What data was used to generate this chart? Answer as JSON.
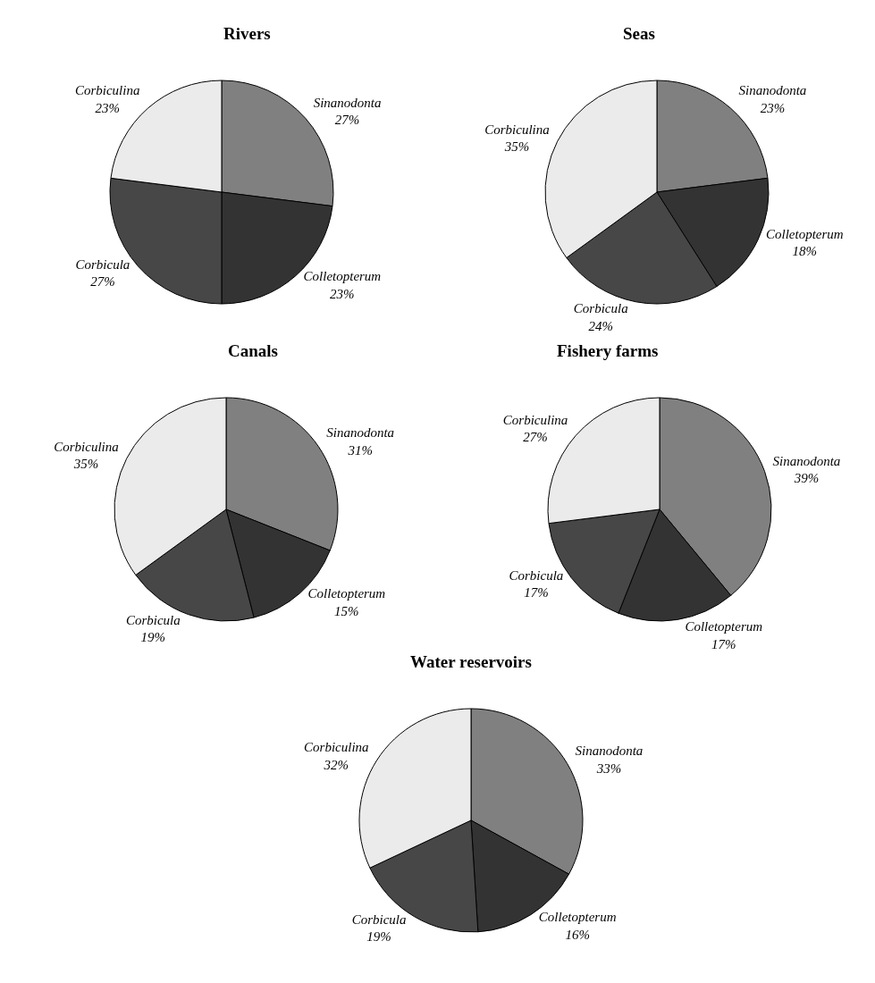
{
  "chart_data": [
    {
      "type": "pie",
      "title": "Rivers",
      "categories": [
        "Sinanodonta",
        "Colletopterum",
        "Corbicula",
        "Corbiculina"
      ],
      "values": [
        27,
        23,
        27,
        23
      ],
      "value_labels": [
        "27%",
        "23%",
        "27%",
        "23%"
      ],
      "colors": [
        "#808080",
        "#333333",
        "#474747",
        "#ebebeb"
      ]
    },
    {
      "type": "pie",
      "title": "Seas",
      "categories": [
        "Sinanodonta",
        "Colletopterum",
        "Corbicula",
        "Corbiculina"
      ],
      "values": [
        23,
        18,
        24,
        35
      ],
      "value_labels": [
        "23%",
        "18%",
        "24%",
        "35%"
      ],
      "colors": [
        "#808080",
        "#333333",
        "#474747",
        "#ebebeb"
      ]
    },
    {
      "type": "pie",
      "title": "Canals",
      "categories": [
        "Sinanodonta",
        "Colletopterum",
        "Corbicula",
        "Corbiculina"
      ],
      "values": [
        31,
        15,
        19,
        35
      ],
      "value_labels": [
        "31%",
        "15%",
        "19%",
        "35%"
      ],
      "colors": [
        "#808080",
        "#333333",
        "#474747",
        "#ebebeb"
      ]
    },
    {
      "type": "pie",
      "title": "Fishery farms",
      "categories": [
        "Sinanodonta",
        "Colletopterum",
        "Corbicula",
        "Corbiculina"
      ],
      "values": [
        39,
        17,
        17,
        27
      ],
      "value_labels": [
        "39%",
        "17%",
        "17%",
        "27%"
      ],
      "colors": [
        "#808080",
        "#333333",
        "#474747",
        "#ebebeb"
      ]
    },
    {
      "type": "pie",
      "title": "Water reservoirs",
      "categories": [
        "Sinanodonta",
        "Colletopterum",
        "Corbicula",
        "Corbiculina"
      ],
      "values": [
        33,
        16,
        19,
        32
      ],
      "value_labels": [
        "33%",
        "16%",
        "19%",
        "32%"
      ],
      "colors": [
        "#808080",
        "#333333",
        "#474747",
        "#ebebeb"
      ]
    }
  ]
}
